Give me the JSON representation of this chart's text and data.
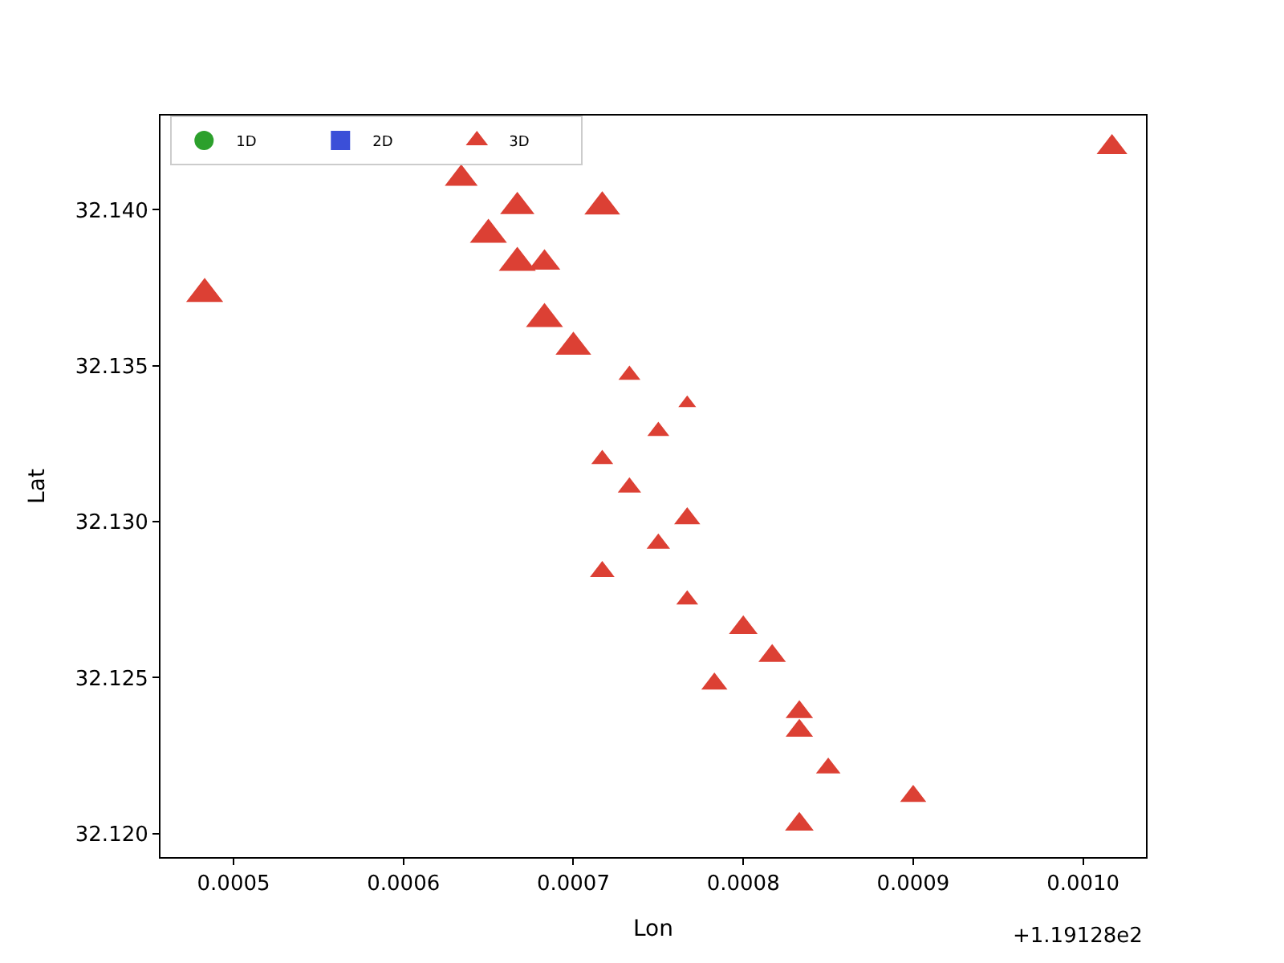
{
  "chart_data": {
    "type": "bubble",
    "xlabel": "Lon",
    "ylabel": "Lat",
    "annotations": [
      "+1.19128e2"
    ],
    "xlim": [
      0.000457,
      0.001037
    ],
    "xticks": [
      {
        "value": 0.0005,
        "label": "0.0005"
      },
      {
        "value": 0.0006,
        "label": "0.0006"
      },
      {
        "value": 0.0007,
        "label": "0.0007"
      },
      {
        "value": 0.0008,
        "label": "0.0008"
      },
      {
        "value": 0.0009,
        "label": "0.0009"
      },
      {
        "value": 0.001,
        "label": "0.0010"
      }
    ],
    "ylim": [
      32.11925,
      32.14302
    ],
    "yticks": [
      {
        "value": 32.12,
        "label": "32.120"
      },
      {
        "value": 32.125,
        "label": "32.125"
      },
      {
        "value": 32.13,
        "label": "32.130"
      },
      {
        "value": 32.135,
        "label": "32.135"
      },
      {
        "value": 32.14,
        "label": "32.140"
      }
    ],
    "legend": "top left",
    "series": [
      {
        "name": "1D",
        "color": "#2ca02c",
        "marker": "circle"
      },
      {
        "name": "2D",
        "color": "#3b4fd8",
        "marker": "square"
      },
      {
        "name": "3D",
        "color": "#dc4034",
        "marker": "triangle",
        "x": [
          0.001017,
          0.000634,
          0.000667,
          0.000717,
          0.00065,
          0.000667,
          0.000683,
          0.000483,
          0.000683,
          0.0007,
          0.000733,
          0.000767,
          0.00075,
          0.000717,
          0.000733,
          0.000767,
          0.00075,
          0.000717,
          0.000767,
          0.0008,
          0.000817,
          0.000783,
          0.000833,
          0.000833,
          0.00085,
          0.0009,
          0.000833
        ],
        "values": [
          32.142,
          32.141,
          32.1401,
          32.1401,
          32.1392,
          32.1383,
          32.1383,
          32.1373,
          32.1365,
          32.1356,
          32.1347,
          32.1338,
          32.1329,
          32.132,
          32.1311,
          32.1301,
          32.1293,
          32.1284,
          32.1275,
          32.1266,
          32.1257,
          32.1248,
          32.1239,
          32.1233,
          32.1221,
          32.1212,
          32.1203
        ],
        "sizes": [
          0.69,
          0.79,
          0.86,
          0.93,
          1,
          1,
          0.73,
          1,
          1,
          0.93,
          0.35,
          0.23,
          0.35,
          0.35,
          0.4,
          0.5,
          0.4,
          0.44,
          0.35,
          0.6,
          0.55,
          0.5,
          0.55,
          0.55,
          0.44,
          0.5,
          0.6
        ]
      }
    ]
  }
}
